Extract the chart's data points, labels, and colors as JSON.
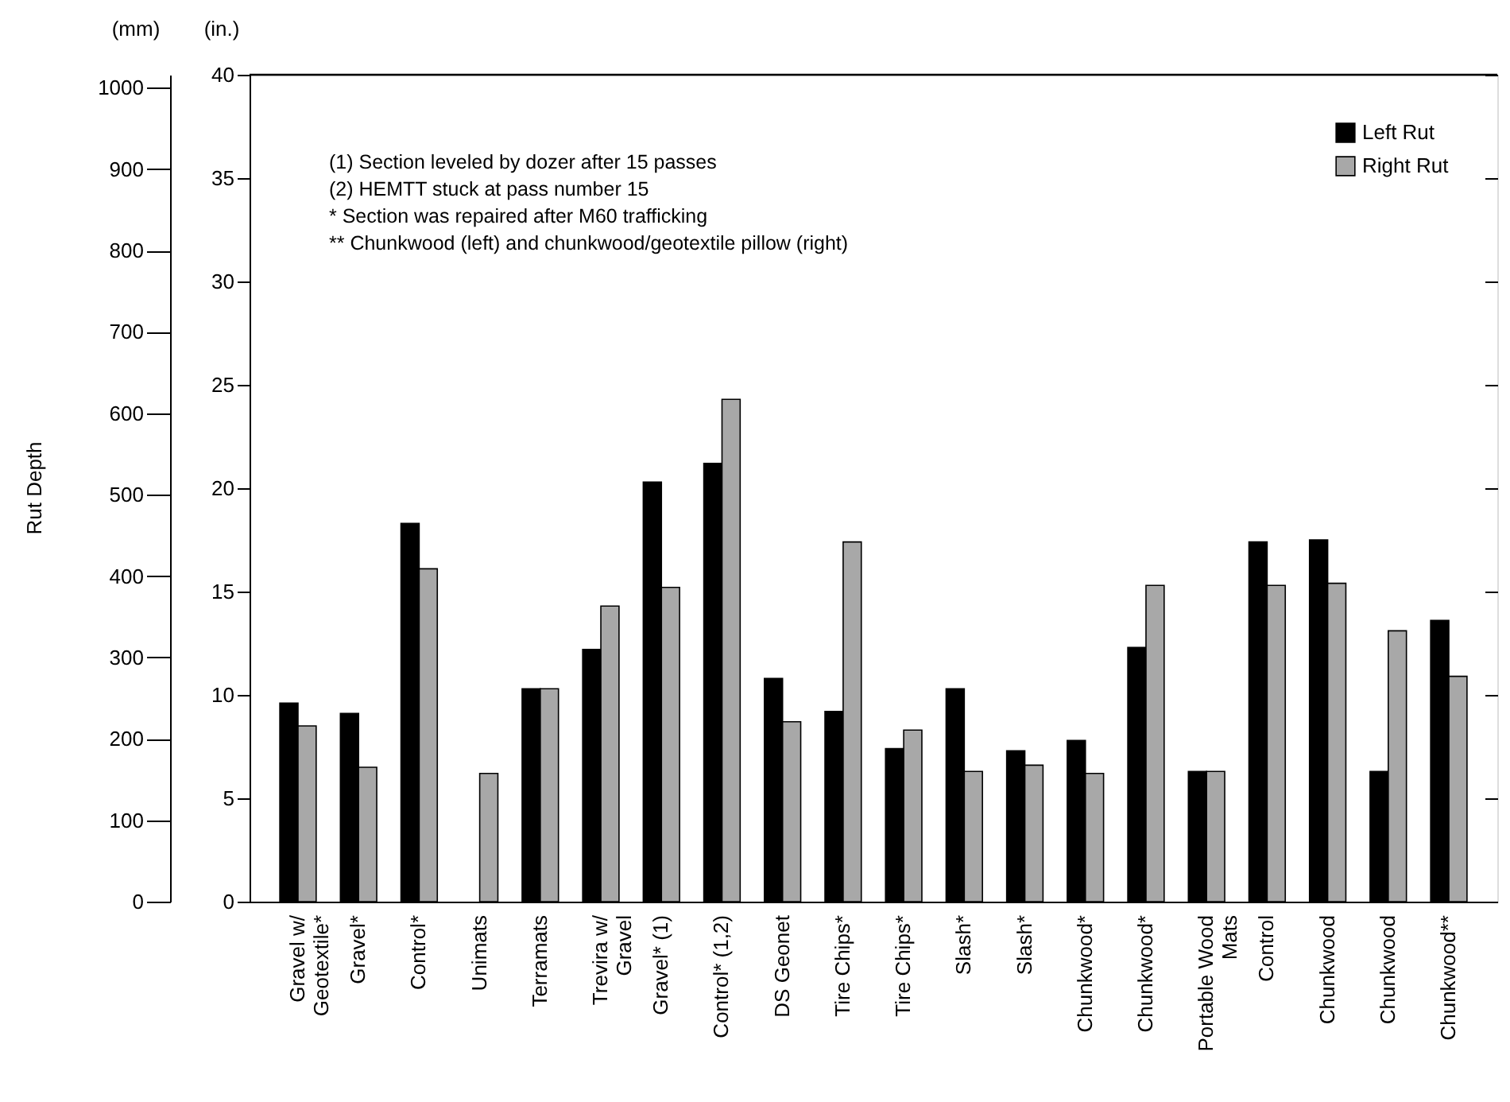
{
  "chart_data": {
    "type": "bar",
    "categories": [
      "Gravel w/\nGeotextile*",
      "Gravel*",
      "Control*",
      "Unimats",
      "Terramats",
      "Trevira w/\nGravel",
      "Gravel* (1)",
      "Control* (1,2)",
      "DS Geonet",
      "Tire Chips*",
      "Tire Chips*",
      "Slash*",
      "Slash*",
      "Chunkwood*",
      "Chunkwood*",
      "Portable Wood\nMats",
      "Control",
      "Chunkwood",
      "Chunkwood",
      "Chunkwood**"
    ],
    "series": [
      {
        "name": "Left Rut",
        "color": "#000000",
        "values": [
          9.6,
          9.1,
          18.3,
          null,
          10.3,
          12.2,
          20.3,
          21.2,
          10.8,
          9.2,
          7.4,
          10.3,
          7.3,
          7.8,
          12.3,
          6.3,
          17.4,
          17.5,
          6.3,
          13.6
        ]
      },
      {
        "name": "Right Rut",
        "color": "#a8a8a8",
        "values": [
          8.5,
          6.5,
          16.1,
          6.2,
          10.3,
          14.3,
          15.2,
          24.3,
          8.7,
          17.4,
          8.3,
          6.3,
          6.6,
          6.2,
          15.3,
          6.3,
          15.3,
          15.4,
          13.1,
          10.9
        ]
      }
    ],
    "ylabel": "(in.)",
    "y2label": "(mm)",
    "ylim": [
      0,
      40
    ],
    "yticks": [
      0,
      5,
      10,
      15,
      20,
      25,
      30,
      35,
      40
    ],
    "y2lim": [
      0,
      1016
    ],
    "y2ticks": [
      0,
      100,
      200,
      300,
      400,
      500,
      600,
      700,
      800,
      900,
      1000
    ],
    "annotations": [
      "(1) Section leveled by dozer after 15 passes",
      "(2) HEMTT stuck at pass number 15",
      "  *  Section was repaired after M60 trafficking",
      "** Chunkwood (left) and chunkwood/geotextile pillow (right)",
      "Rut Depth"
    ],
    "legend": "top right",
    "grid": false
  }
}
